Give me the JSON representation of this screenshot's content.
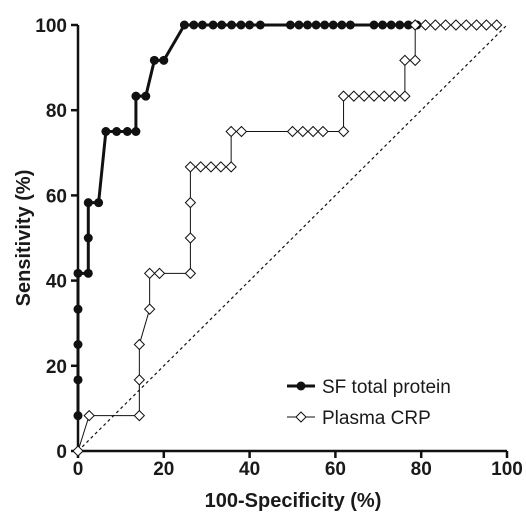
{
  "chart_data": {
    "type": "line",
    "xlabel": "100-Specificity (%)",
    "ylabel": "Sensitivity (%)",
    "xlim": [
      0,
      100
    ],
    "ylim": [
      0,
      100
    ],
    "x_ticks": [
      0,
      20,
      40,
      60,
      80,
      100
    ],
    "y_ticks": [
      0,
      20,
      40,
      60,
      80,
      100
    ],
    "grid": false,
    "legend_position": "bottom-right",
    "reference_line": {
      "style": "dashed",
      "from": [
        0,
        0
      ],
      "to": [
        100,
        100
      ]
    },
    "series": [
      {
        "name": "SF total protein",
        "marker": "filled-circle",
        "color": "#111111",
        "points": [
          [
            0,
            8.3
          ],
          [
            0,
            16.7
          ],
          [
            0,
            25
          ],
          [
            0,
            33.3
          ],
          [
            0,
            41.7
          ],
          [
            2.4,
            41.7
          ],
          [
            2.4,
            50
          ],
          [
            2.4,
            58.3
          ],
          [
            4.8,
            58.3
          ],
          [
            6.5,
            75
          ],
          [
            9,
            75
          ],
          [
            11.5,
            75
          ],
          [
            13.5,
            75
          ],
          [
            13.5,
            83.3
          ],
          [
            15.8,
            83.3
          ],
          [
            17.8,
            91.7
          ],
          [
            20,
            91.7
          ],
          [
            24.8,
            100
          ],
          [
            27,
            100
          ],
          [
            29,
            100
          ],
          [
            31.5,
            100
          ],
          [
            33.5,
            100
          ],
          [
            35.8,
            100
          ],
          [
            38,
            100
          ],
          [
            40,
            100
          ],
          [
            42.5,
            100
          ],
          [
            49.5,
            100
          ],
          [
            51.5,
            100
          ],
          [
            53.5,
            100
          ],
          [
            55.5,
            100
          ],
          [
            57.5,
            100
          ],
          [
            59.5,
            100
          ],
          [
            61.5,
            100
          ],
          [
            63.5,
            100
          ],
          [
            69,
            100
          ],
          [
            71,
            100
          ],
          [
            73,
            100
          ],
          [
            75,
            100
          ],
          [
            77,
            100
          ],
          [
            79,
            100
          ]
        ]
      },
      {
        "name": "Plasma CRP",
        "marker": "open-diamond",
        "color": "#111111",
        "points": [
          [
            0,
            0
          ],
          [
            2.6,
            8.3
          ],
          [
            14.3,
            8.3
          ],
          [
            14.3,
            16.7
          ],
          [
            14.3,
            25
          ],
          [
            16.7,
            33.3
          ],
          [
            16.7,
            41.7
          ],
          [
            19,
            41.7
          ],
          [
            26.2,
            41.7
          ],
          [
            26.2,
            50
          ],
          [
            26.2,
            58.3
          ],
          [
            26.2,
            66.7
          ],
          [
            28.6,
            66.7
          ],
          [
            31,
            66.7
          ],
          [
            33.3,
            66.7
          ],
          [
            35.7,
            66.7
          ],
          [
            35.7,
            75
          ],
          [
            38.1,
            75
          ],
          [
            50,
            75
          ],
          [
            52.4,
            75
          ],
          [
            54.8,
            75
          ],
          [
            57.1,
            75
          ],
          [
            61.9,
            75
          ],
          [
            61.9,
            83.3
          ],
          [
            64.3,
            83.3
          ],
          [
            66.7,
            83.3
          ],
          [
            69,
            83.3
          ],
          [
            71.4,
            83.3
          ],
          [
            73.8,
            83.3
          ],
          [
            76.2,
            83.3
          ],
          [
            76.2,
            91.7
          ],
          [
            78.6,
            91.7
          ],
          [
            78.6,
            100
          ],
          [
            81,
            100
          ],
          [
            83.3,
            100
          ],
          [
            85.7,
            100
          ],
          [
            88.1,
            100
          ],
          [
            90.5,
            100
          ],
          [
            92.9,
            100
          ],
          [
            95.2,
            100
          ],
          [
            97.6,
            100
          ]
        ]
      }
    ]
  }
}
